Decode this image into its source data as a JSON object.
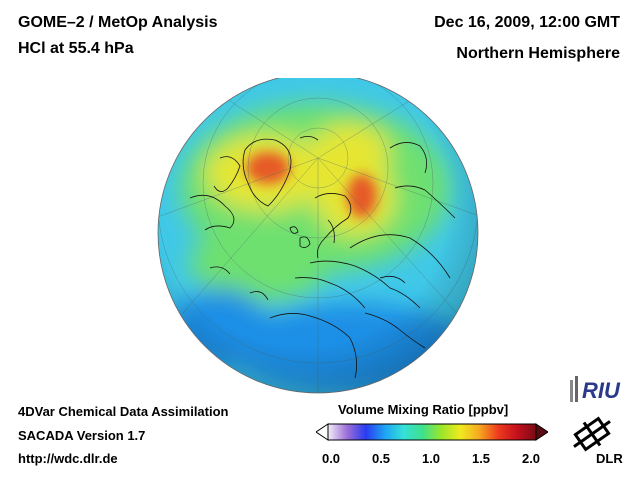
{
  "header": {
    "title": "GOME–2 / MetOp Analysis",
    "subtitle": "HCl at 55.4 hPa",
    "datetime": "Dec 16, 2009, 12:00 GMT",
    "region": "Northern Hemisphere"
  },
  "footer": {
    "method": "4DVar Chemical Data Assimilation",
    "version": "SACADA Version 1.7",
    "url": "http://wdc.dlr.de"
  },
  "colorbar": {
    "title": "Volume Mixing Ratio [ppbv]",
    "ticks": [
      "0.0",
      "0.5",
      "1.0",
      "1.5",
      "2.0"
    ],
    "colors": [
      "#f2eef8",
      "#9d6fd6",
      "#2a3cf0",
      "#1ea3f5",
      "#36e0d8",
      "#3fe08a",
      "#9ae62a",
      "#f0ea20",
      "#f6a821",
      "#ee3b1d",
      "#c4101c",
      "#7a0b16"
    ]
  },
  "logos": {
    "riu": "RIU",
    "dlr": "DLR"
  },
  "map_colors": {
    "ocean_base": "#40c8e8",
    "low": "#1f8fe6",
    "mid": "#6ee070",
    "high": "#e6e632",
    "peak": "#e65a28"
  }
}
